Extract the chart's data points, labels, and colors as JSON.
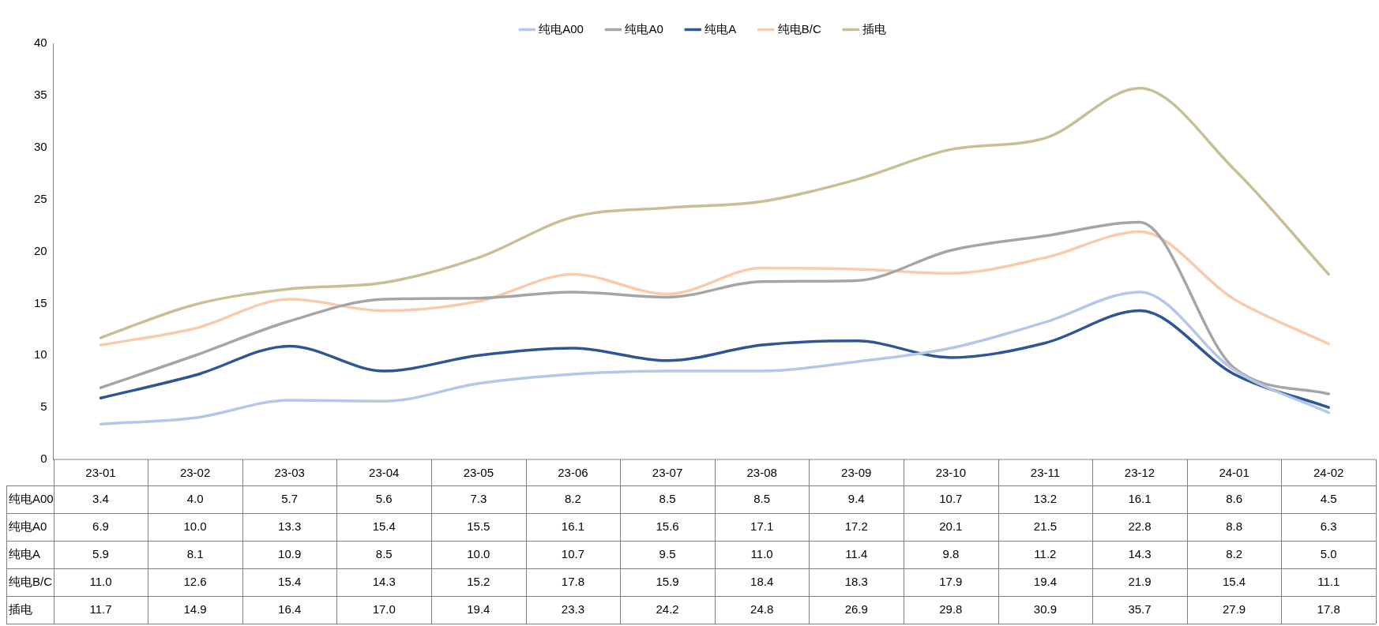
{
  "chart_data": {
    "type": "line",
    "categories": [
      "23-01",
      "23-02",
      "23-03",
      "23-04",
      "23-05",
      "23-06",
      "23-07",
      "23-08",
      "23-09",
      "23-10",
      "23-11",
      "23-12",
      "24-01",
      "24-02"
    ],
    "series": [
      {
        "name": "纯电A00",
        "color": "#b4c7e7",
        "values": [
          3.4,
          4.0,
          5.7,
          5.6,
          7.3,
          8.2,
          8.5,
          8.5,
          9.4,
          10.7,
          13.2,
          16.1,
          8.6,
          4.5
        ],
        "value_labels": [
          "3.4",
          "4.0",
          "5.7",
          "5.6",
          "7.3",
          "8.2",
          "8.5",
          "8.5",
          "9.4",
          "10.7",
          "13.2",
          "16.1",
          "8.6",
          "4.5"
        ]
      },
      {
        "name": "纯电A0",
        "color": "#a5a5a5",
        "values": [
          6.9,
          10.0,
          13.3,
          15.4,
          15.5,
          16.1,
          15.6,
          17.1,
          17.2,
          20.1,
          21.5,
          22.8,
          8.8,
          6.3
        ],
        "value_labels": [
          "6.9",
          "10.0",
          "13.3",
          "15.4",
          "15.5",
          "16.1",
          "15.6",
          "17.1",
          "17.2",
          "20.1",
          "21.5",
          "22.8",
          "8.8",
          "6.3"
        ]
      },
      {
        "name": "纯电A",
        "color": "#2f5597",
        "values": [
          5.9,
          8.1,
          10.9,
          8.5,
          10.0,
          10.7,
          9.5,
          11.0,
          11.4,
          9.8,
          11.2,
          14.3,
          8.2,
          5.0
        ],
        "value_labels": [
          "5.9",
          "8.1",
          "10.9",
          "8.5",
          "10.0",
          "10.7",
          "9.5",
          "11.0",
          "11.4",
          "9.8",
          "11.2",
          "14.3",
          "8.2",
          "5.0"
        ]
      },
      {
        "name": "纯电B/C",
        "color": "#f8cbad",
        "values": [
          11.0,
          12.6,
          15.4,
          14.3,
          15.2,
          17.8,
          15.9,
          18.4,
          18.3,
          17.9,
          19.4,
          21.9,
          15.4,
          11.1
        ],
        "value_labels": [
          "11.0",
          "12.6",
          "15.4",
          "14.3",
          "15.2",
          "17.8",
          "15.9",
          "18.4",
          "18.3",
          "17.9",
          "19.4",
          "21.9",
          "15.4",
          "11.1"
        ]
      },
      {
        "name": "插电",
        "color": "#c9bf94",
        "values": [
          11.7,
          14.9,
          16.4,
          17.0,
          19.4,
          23.3,
          24.2,
          24.8,
          26.9,
          29.8,
          30.9,
          35.7,
          27.9,
          17.8
        ],
        "value_labels": [
          "11.7",
          "14.9",
          "16.4",
          "17.0",
          "19.4",
          "23.3",
          "24.2",
          "24.8",
          "26.9",
          "29.8",
          "30.9",
          "35.7",
          "27.9",
          "17.8"
        ]
      }
    ],
    "ylim": [
      0,
      40
    ],
    "yticks": [
      0,
      5,
      10,
      15,
      20,
      25,
      30,
      35,
      40
    ],
    "grid": false,
    "legend": "top",
    "marker": "none",
    "line_style": "solid"
  }
}
